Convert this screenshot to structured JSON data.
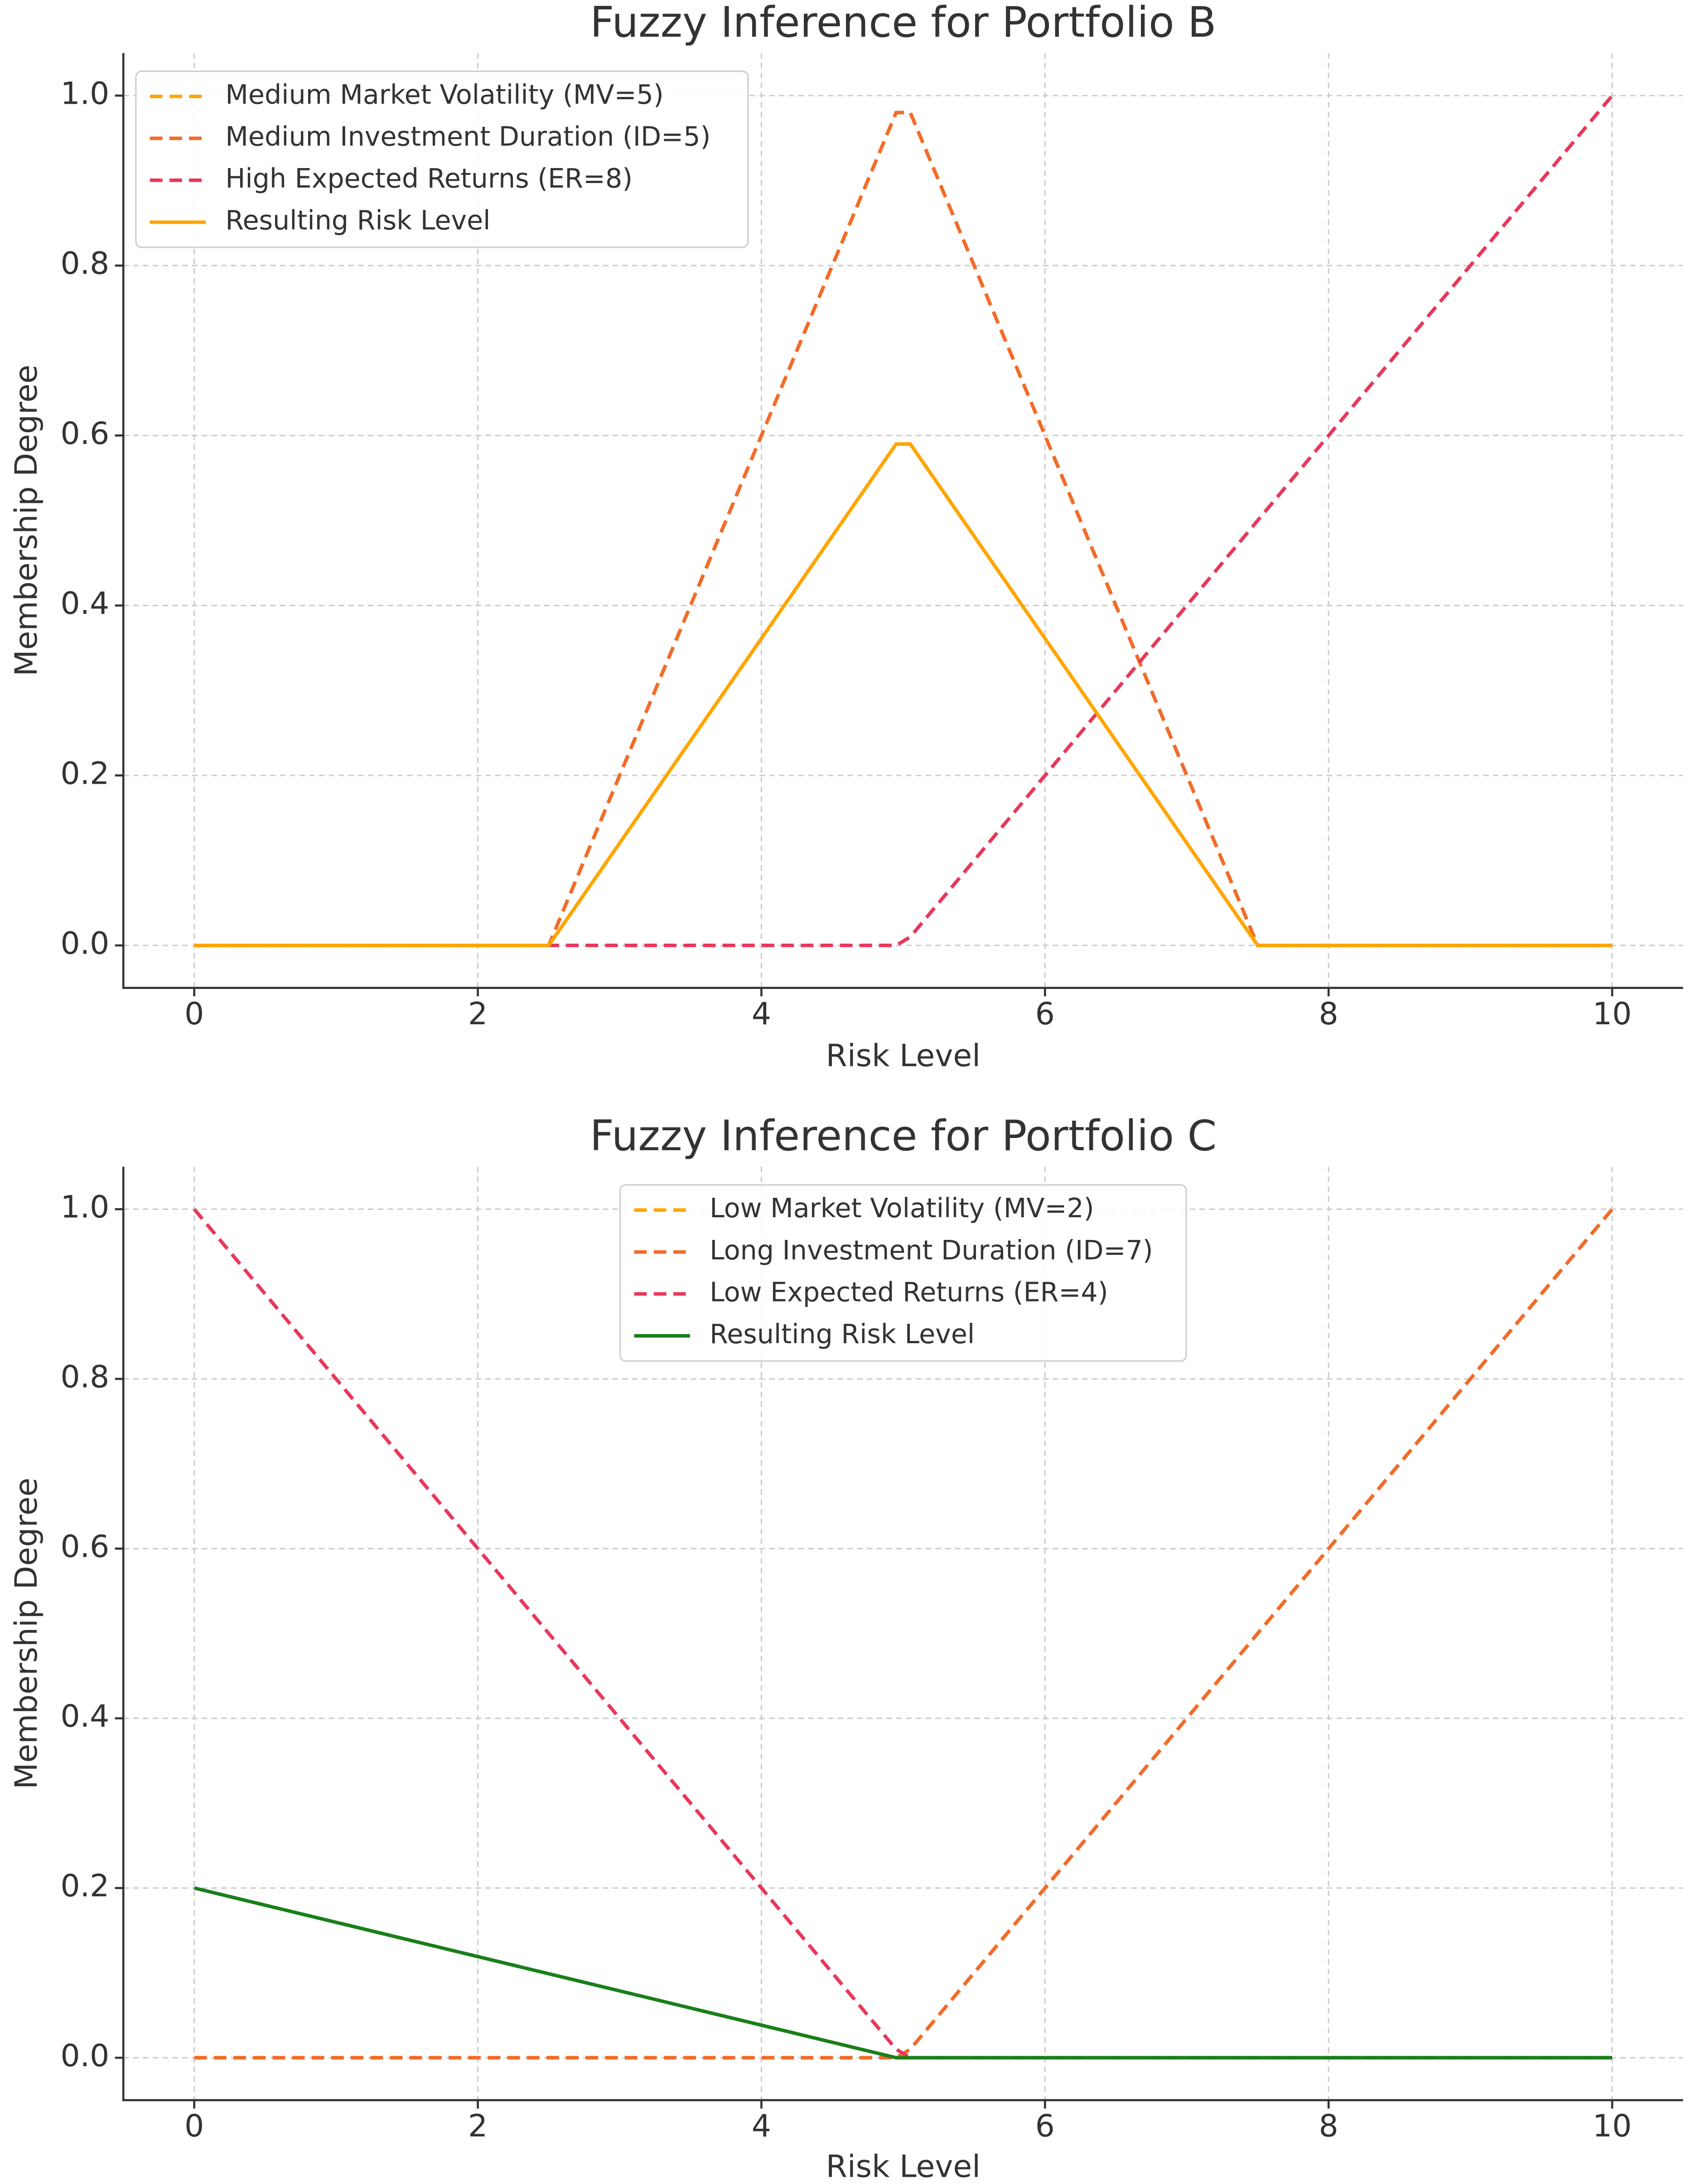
{
  "chart_data": [
    {
      "type": "line",
      "title": "Fuzzy Inference for Portfolio B",
      "xlabel": "Risk Level",
      "ylabel": "Membership Degree",
      "x": [
        0,
        2.5,
        4.95,
        5.05,
        7.5,
        10
      ],
      "series": [
        {
          "name": "Medium Market Volatility (MV=5)",
          "color": "#ffa500",
          "linestyle": "dashed",
          "values": [
            0,
            0,
            0.98,
            0.98,
            0,
            0
          ]
        },
        {
          "name": "Medium Investment Duration (ID=5)",
          "color": "#f26b2a",
          "linestyle": "dashed",
          "values": [
            0,
            0,
            0.98,
            0.98,
            0,
            0
          ]
        },
        {
          "name": "High Expected Returns (ER=8)",
          "color": "#e8385a",
          "linestyle": "dashed",
          "values": [
            0,
            0,
            0,
            0.01,
            0.5,
            1
          ]
        },
        {
          "name": "Resulting Risk Level",
          "color": "#ffa500",
          "linestyle": "solid",
          "values": [
            0,
            0,
            0.59,
            0.59,
            0,
            0
          ]
        }
      ],
      "xlim": [
        -0.5,
        10.5
      ],
      "ylim": [
        -0.05,
        1.05
      ],
      "xticks": [
        0,
        2,
        4,
        6,
        8,
        10
      ],
      "yticks": [
        {
          "value": 0,
          "label": "0.0"
        },
        0.2,
        0.4,
        0.6,
        0.8,
        {
          "value": 1,
          "label": "1.0"
        }
      ],
      "grid": true,
      "legend": "upper left"
    },
    {
      "type": "line",
      "title": "Fuzzy Inference for Portfolio C",
      "xlabel": "Risk Level",
      "ylabel": "Membership Degree",
      "x": [
        0,
        4.95,
        5.05,
        10
      ],
      "series": [
        {
          "name": "Low Market Volatility (MV=2)",
          "color": "#ffa500",
          "linestyle": "dashed",
          "values": [
            0,
            0,
            0.01,
            1
          ]
        },
        {
          "name": "Long Investment Duration (ID=7)",
          "color": "#f26b2a",
          "linestyle": "dashed",
          "values": [
            0,
            0,
            0.01,
            1
          ]
        },
        {
          "name": "Low Expected Returns (ER=4)",
          "color": "#e8385a",
          "linestyle": "dashed",
          "values": [
            1,
            0.01,
            0,
            0
          ]
        },
        {
          "name": "Resulting Risk Level",
          "color": "#1a7f1a",
          "linestyle": "solid",
          "values": [
            0.2,
            0,
            0,
            0
          ]
        }
      ],
      "xlim": [
        -0.5,
        10.5
      ],
      "ylim": [
        -0.05,
        1.05
      ],
      "xticks": [
        0,
        2,
        4,
        6,
        8,
        10
      ],
      "yticks": [
        {
          "value": 0,
          "label": "0.0"
        },
        0.2,
        0.4,
        0.6,
        0.8,
        {
          "value": 1,
          "label": "1.0"
        }
      ],
      "grid": true,
      "legend": "upper center"
    }
  ]
}
